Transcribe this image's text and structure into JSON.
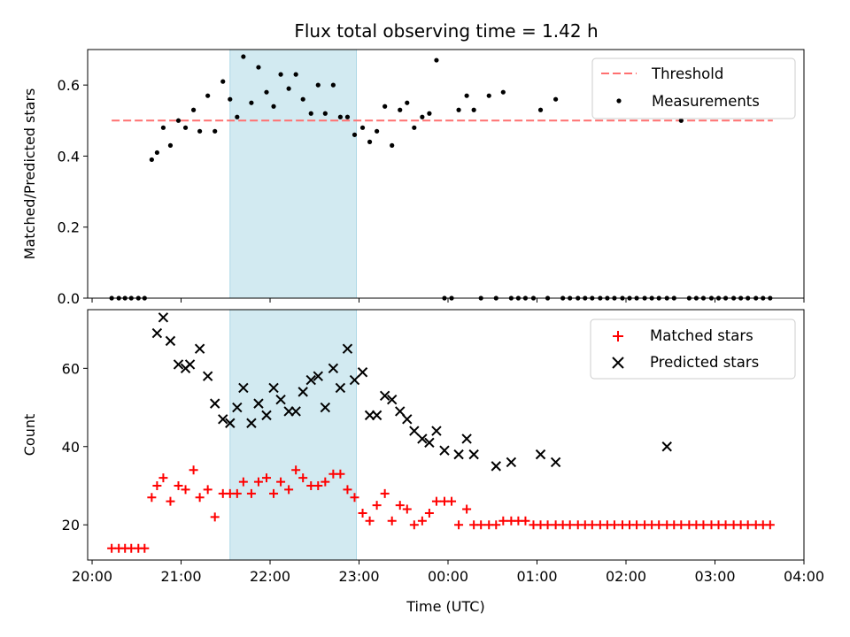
{
  "title": "Flux total observing time = 1.42 h",
  "colors": {
    "threshold": "#ff7070",
    "measurements": "#000000",
    "matched": "#ff0000",
    "predicted": "#000000",
    "highlight": "#add8e6"
  },
  "chart_data": [
    {
      "type": "scatter",
      "ylabel": "Matched/Predicted stars",
      "ylim": [
        0,
        0.7
      ],
      "yticks": [
        "0.0",
        "0.2",
        "0.4",
        "0.6"
      ],
      "xlim_hours": [
        19.95,
        28.0
      ],
      "highlight_span_hours": [
        21.55,
        22.97
      ],
      "legend": {
        "placement": "upper right",
        "entries": [
          "Threshold",
          "Measurements"
        ]
      },
      "series": [
        {
          "name": "Threshold",
          "kind": "dashed-line",
          "x": [
            20.22,
            27.65
          ],
          "y": [
            0.5,
            0.5
          ]
        },
        {
          "name": "Measurements",
          "kind": "dot",
          "x": [
            20.22,
            20.3,
            20.37,
            20.44,
            20.52,
            20.59,
            20.67,
            20.73,
            20.8,
            20.88,
            20.97,
            21.05,
            21.14,
            21.21,
            21.3,
            21.38,
            21.47,
            21.55,
            21.63,
            21.7,
            21.79,
            21.87,
            21.96,
            22.04,
            22.12,
            22.21,
            22.29,
            22.37,
            22.46,
            22.54,
            22.62,
            22.71,
            22.79,
            22.87,
            22.95,
            23.04,
            23.12,
            23.2,
            23.29,
            23.37,
            23.46,
            23.54,
            23.62,
            23.71,
            23.79,
            23.87,
            23.96,
            24.04,
            24.12,
            24.21,
            24.29,
            24.37,
            24.46,
            24.54,
            24.62,
            24.71,
            24.79,
            24.87,
            24.96,
            25.04,
            25.12,
            25.21,
            25.29,
            25.37,
            25.46,
            25.54,
            25.62,
            25.71,
            25.79,
            25.87,
            25.96,
            26.04,
            26.12,
            26.21,
            26.29,
            26.37,
            26.46,
            26.54,
            26.62,
            26.71,
            26.79,
            26.87,
            26.96,
            27.04,
            27.12,
            27.21,
            27.29,
            27.37,
            27.46,
            27.54,
            27.62
          ],
          "y": [
            0,
            0,
            0,
            0,
            0,
            0,
            0.39,
            0.41,
            0.48,
            0.43,
            0.5,
            0.48,
            0.53,
            0.47,
            0.57,
            0.47,
            0.61,
            0.56,
            0.51,
            0.68,
            0.55,
            0.65,
            0.58,
            0.54,
            0.63,
            0.59,
            0.63,
            0.56,
            0.52,
            0.6,
            0.52,
            0.6,
            0.51,
            0.51,
            0.46,
            0.48,
            0.44,
            0.47,
            0.54,
            0.43,
            0.53,
            0.55,
            0.48,
            0.51,
            0.52,
            0.67,
            0,
            0,
            0.53,
            0.57,
            0.53,
            0,
            0.57,
            0,
            0.58,
            0,
            0,
            0,
            0,
            0.53,
            0,
            0.56,
            0,
            0,
            0,
            0,
            0,
            0,
            0,
            0,
            0,
            0,
            0,
            0,
            0,
            0,
            0,
            0,
            0.5,
            0,
            0,
            0,
            0,
            0,
            0,
            0,
            0,
            0,
            0,
            0,
            0
          ]
        }
      ]
    },
    {
      "type": "scatter",
      "xlabel": "Time (UTC)",
      "ylabel": "Count",
      "ylim": [
        11,
        75
      ],
      "yticks": [
        "20",
        "40",
        "60"
      ],
      "xticks": [
        "20:00",
        "21:00",
        "22:00",
        "23:00",
        "00:00",
        "01:00",
        "02:00",
        "03:00",
        "04:00"
      ],
      "xlim_hours": [
        19.95,
        28.0
      ],
      "highlight_span_hours": [
        21.55,
        22.97
      ],
      "legend": {
        "placement": "upper right",
        "entries": [
          "Matched stars",
          "Predicted stars"
        ]
      },
      "series": [
        {
          "name": "Matched stars",
          "kind": "plus",
          "x": [
            20.22,
            20.3,
            20.37,
            20.44,
            20.52,
            20.59,
            20.67,
            20.73,
            20.8,
            20.88,
            20.97,
            21.05,
            21.14,
            21.21,
            21.3,
            21.38,
            21.47,
            21.55,
            21.63,
            21.7,
            21.79,
            21.87,
            21.96,
            22.04,
            22.12,
            22.21,
            22.29,
            22.37,
            22.46,
            22.54,
            22.62,
            22.71,
            22.79,
            22.87,
            22.95,
            23.04,
            23.12,
            23.2,
            23.29,
            23.37,
            23.46,
            23.54,
            23.62,
            23.71,
            23.79,
            23.87,
            23.96,
            24.04,
            24.12,
            24.21,
            24.29,
            24.37,
            24.46,
            24.54,
            24.62,
            24.71,
            24.79,
            24.87,
            24.96,
            25.04,
            25.12,
            25.21,
            25.29,
            25.37,
            25.46,
            25.54,
            25.62,
            25.71,
            25.79,
            25.87,
            25.96,
            26.04,
            26.12,
            26.21,
            26.29,
            26.37,
            26.46,
            26.54,
            26.62,
            26.71,
            26.79,
            26.87,
            26.96,
            27.04,
            27.12,
            27.21,
            27.29,
            27.37,
            27.46,
            27.54,
            27.62
          ],
          "y": [
            14,
            14,
            14,
            14,
            14,
            14,
            27,
            30,
            32,
            26,
            30,
            29,
            34,
            27,
            29,
            22,
            28,
            28,
            28,
            31,
            28,
            31,
            32,
            28,
            31,
            29,
            34,
            32,
            30,
            30,
            31,
            33,
            33,
            29,
            27,
            23,
            21,
            25,
            28,
            21,
            25,
            24,
            20,
            21,
            23,
            26,
            26,
            26,
            20,
            24,
            20,
            20,
            20,
            20,
            21,
            21,
            21,
            21,
            20,
            20,
            20,
            20,
            20,
            20,
            20,
            20,
            20,
            20,
            20,
            20,
            20,
            20,
            20,
            20,
            20,
            20,
            20,
            20,
            20,
            20,
            20,
            20,
            20,
            20,
            20,
            20,
            20,
            20,
            20,
            20,
            20
          ]
        },
        {
          "name": "Predicted stars",
          "kind": "x",
          "x": [
            20.73,
            20.8,
            20.88,
            20.97,
            21.05,
            21.1,
            21.21,
            21.3,
            21.38,
            21.47,
            21.55,
            21.63,
            21.7,
            21.79,
            21.87,
            21.96,
            22.04,
            22.12,
            22.21,
            22.29,
            22.37,
            22.46,
            22.54,
            22.62,
            22.71,
            22.79,
            22.87,
            22.95,
            23.04,
            23.12,
            23.2,
            23.29,
            23.37,
            23.46,
            23.54,
            23.62,
            23.71,
            23.79,
            23.87,
            23.96,
            24.12,
            24.21,
            24.29,
            24.54,
            24.71,
            25.04,
            25.21,
            26.46
          ],
          "y": [
            69,
            73,
            67,
            61,
            60,
            61,
            65,
            58,
            51,
            47,
            46,
            50,
            55,
            46,
            51,
            48,
            55,
            52,
            49,
            49,
            54,
            57,
            58,
            50,
            60,
            55,
            65,
            57,
            59,
            48,
            48,
            53,
            52,
            49,
            47,
            44,
            42,
            41,
            44,
            39,
            38,
            42,
            38,
            35,
            36,
            38,
            36,
            40
          ]
        }
      ]
    }
  ]
}
